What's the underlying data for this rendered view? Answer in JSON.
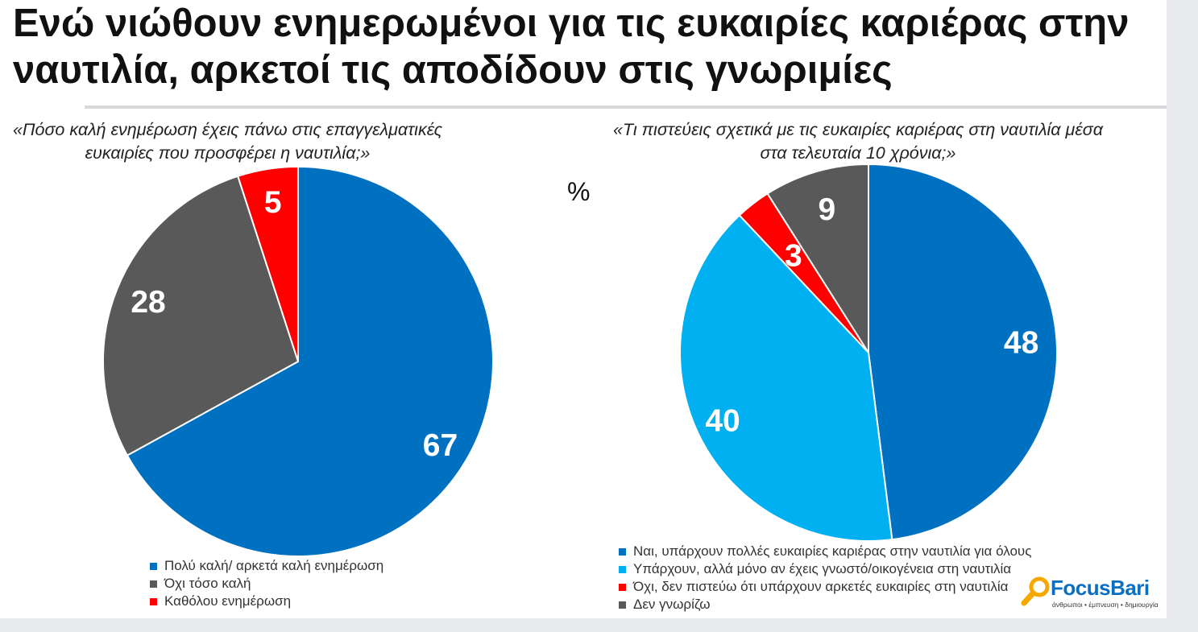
{
  "title": "Ενώ νιώθουν ενημερωμένοι για τις ευκαιρίες καριέρας στην ναυτιλία, αρκετοί τις αποδίδουν στις γνωριμίες",
  "percent_sign": "%",
  "logo": {
    "name": "FocusBari",
    "tagline": "άνθρωποι • έμπνευση • δημιουργία"
  },
  "colors": {
    "blue": "#0070c0",
    "light_blue": "#00b0f0",
    "gray": "#595959",
    "red": "#ff0000"
  },
  "chart_data": [
    {
      "type": "pie",
      "title": "«Πόσο καλή ενημέρωση έχεις πάνω στις επαγγελματικές ευκαιρίες που προσφέρει η ναυτιλία;»",
      "categories": [
        "Πολύ καλή/ αρκετά καλή ενημέρωση",
        "Όχι τόσο καλή",
        "Καθόλου ενημέρωση"
      ],
      "values": [
        67,
        28,
        5
      ],
      "colors": [
        "#0070c0",
        "#595959",
        "#ff0000"
      ],
      "legend_position": "bottom"
    },
    {
      "type": "pie",
      "title": "«Τι πιστεύεις σχετικά με τις ευκαιρίες καριέρας στη ναυτιλία μέσα στα τελευταία 10 χρόνια;»",
      "categories": [
        "Ναι, υπάρχουν πολλές ευκαιρίες καριέρας στην ναυτιλία για όλους",
        "Υπάρχουν, αλλά μόνο αν έχεις γνωστό/οικογένεια στη ναυτιλία",
        "Όχι, δεν πιστεύω ότι υπάρχουν αρκετές ευκαιρίες στη ναυτιλία",
        "Δεν γνωρίζω"
      ],
      "values": [
        48,
        40,
        3,
        9
      ],
      "colors": [
        "#0070c0",
        "#00b0f0",
        "#ff0000",
        "#595959"
      ],
      "legend_position": "bottom"
    }
  ]
}
